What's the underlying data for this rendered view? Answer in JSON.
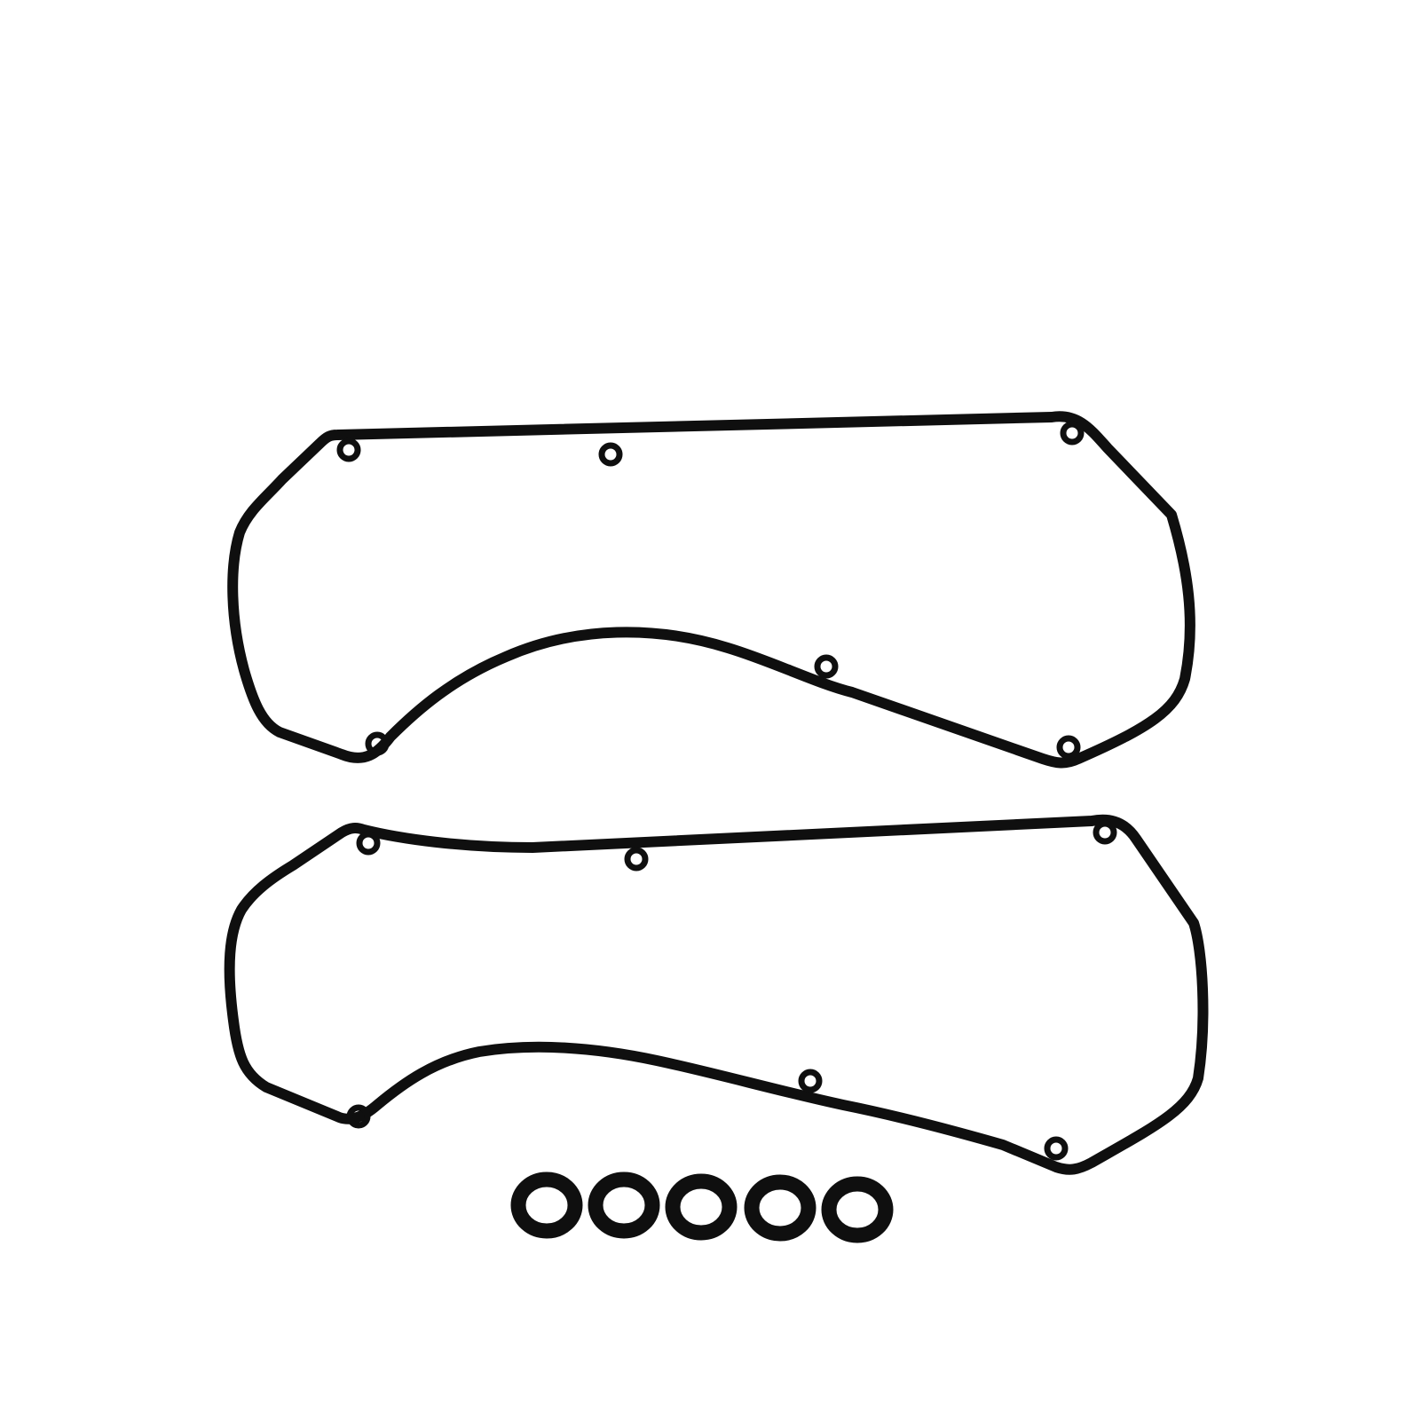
{
  "image": {
    "background_color": "#ffffff",
    "gasket_color": "#0f0f0f",
    "seal_count": 5
  }
}
